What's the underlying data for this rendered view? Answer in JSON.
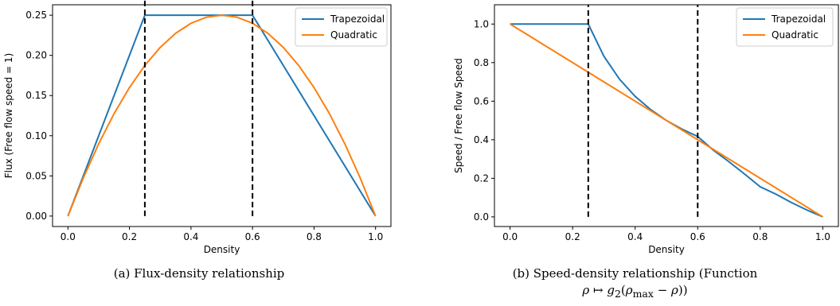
{
  "chart_data": [
    {
      "type": "line",
      "xlabel": "Density",
      "ylabel": "Flux (Free flow speed = 1)",
      "xlim": [
        -0.05,
        1.05
      ],
      "ylim": [
        -0.013,
        0.263
      ],
      "xticks": [
        0.0,
        0.2,
        0.4,
        0.6,
        0.8,
        1.0
      ],
      "xtick_labels": [
        "0.0",
        "0.2",
        "0.4",
        "0.6",
        "0.8",
        "1.0"
      ],
      "yticks": [
        0.0,
        0.05,
        0.1,
        0.15,
        0.2,
        0.25
      ],
      "ytick_labels": [
        "0.00",
        "0.05",
        "0.10",
        "0.15",
        "0.20",
        "0.25"
      ],
      "grid": false,
      "legend_position": "top-right",
      "series": [
        {
          "name": "Trapezoidal",
          "color": "#1f77b4",
          "x": [
            0.0,
            0.25,
            0.6,
            1.0
          ],
          "y": [
            0.0,
            0.25,
            0.25,
            0.0
          ]
        },
        {
          "name": "Quadratic",
          "color": "#ff7f0e",
          "x": [
            0.0,
            0.05,
            0.1,
            0.15,
            0.2,
            0.25,
            0.3,
            0.35,
            0.4,
            0.45,
            0.5,
            0.55,
            0.6,
            0.65,
            0.7,
            0.75,
            0.8,
            0.85,
            0.9,
            0.95,
            1.0
          ],
          "y": [
            0.0,
            0.0475,
            0.09,
            0.1275,
            0.16,
            0.1875,
            0.21,
            0.2275,
            0.24,
            0.2475,
            0.25,
            0.2475,
            0.24,
            0.2275,
            0.21,
            0.1875,
            0.16,
            0.1275,
            0.09,
            0.0475,
            0.0
          ]
        }
      ],
      "vlines": [
        0.25,
        0.6
      ],
      "vline_range": [
        0.0,
        0.275
      ],
      "caption": "(a) Flux-density relationship"
    },
    {
      "type": "line",
      "xlabel": "Density",
      "ylabel": "Speed / Free flow Speed",
      "xlim": [
        -0.05,
        1.05
      ],
      "ylim": [
        -0.05,
        1.1
      ],
      "xticks": [
        0.0,
        0.2,
        0.4,
        0.6,
        0.8,
        1.0
      ],
      "xtick_labels": [
        "0.0",
        "0.2",
        "0.4",
        "0.6",
        "0.8",
        "1.0"
      ],
      "yticks": [
        0.0,
        0.2,
        0.4,
        0.6,
        0.8,
        1.0
      ],
      "ytick_labels": [
        "0.0",
        "0.2",
        "0.4",
        "0.6",
        "0.8",
        "1.0"
      ],
      "grid": false,
      "legend_position": "top-right",
      "series": [
        {
          "name": "Trapezoidal",
          "color": "#1f77b4",
          "x": [
            0.0,
            0.25,
            0.3,
            0.35,
            0.4,
            0.45,
            0.5,
            0.55,
            0.6,
            0.65,
            0.7,
            0.75,
            0.8,
            0.85,
            0.9,
            0.95,
            1.0
          ],
          "y": [
            1.0,
            1.0,
            0.833,
            0.714,
            0.625,
            0.556,
            0.5,
            0.455,
            0.417,
            0.346,
            0.286,
            0.222,
            0.156,
            0.118,
            0.074,
            0.035,
            0.0
          ]
        },
        {
          "name": "Quadratic",
          "color": "#ff7f0e",
          "x": [
            0.0,
            1.0
          ],
          "y": [
            1.0,
            0.0
          ]
        }
      ],
      "vlines": [
        0.25,
        0.6
      ],
      "vline_range": [
        0.0,
        1.1
      ],
      "caption_line1": "(b) Speed-density relationship (Function",
      "caption_line2": {
        "pre": "ρ ↦ ",
        "g": "g",
        "sub": "2",
        "open": "(",
        "rho1": "ρ",
        "max": "max",
        "minus": " − ",
        "rho2": "ρ",
        "close": "))"
      }
    }
  ]
}
